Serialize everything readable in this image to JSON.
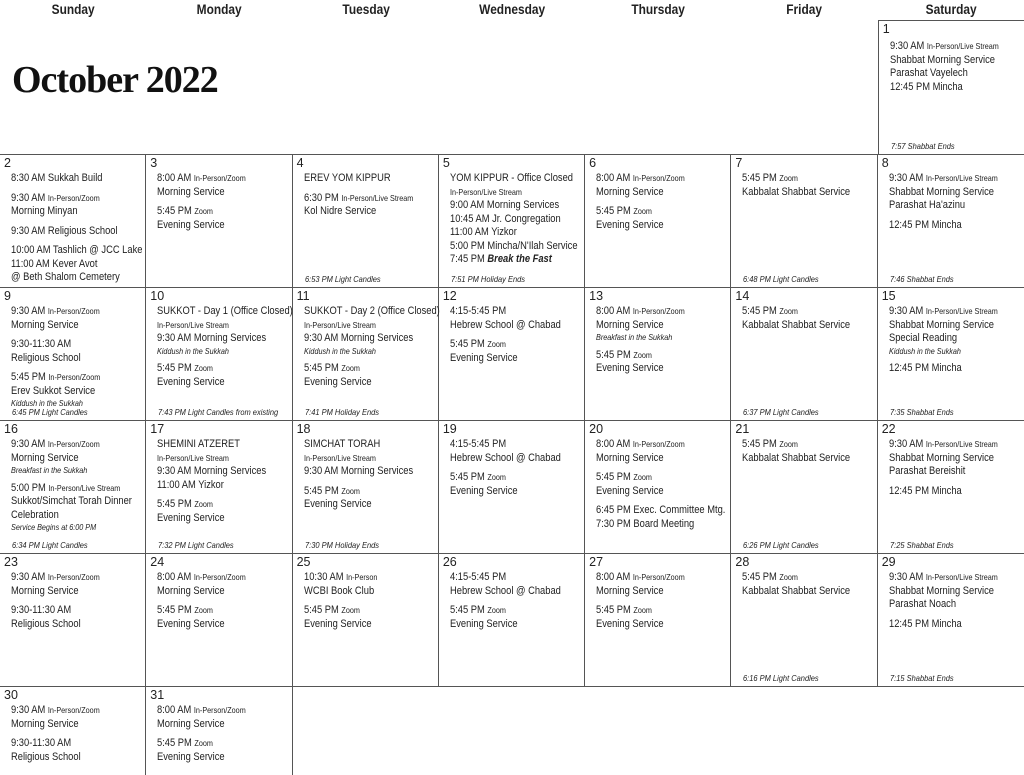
{
  "title": "October 2022",
  "weekdays": [
    "Sunday",
    "Monday",
    "Tuesday",
    "Wednesday",
    "Thursday",
    "Friday",
    "Saturday"
  ],
  "days": [
    {
      "date": 1,
      "groups": [
        [
          {
            "time": "9:30 AM",
            "mode": "In-Person/Live Stream"
          },
          "Shabbat Morning Service",
          "Parashat Vayelech",
          "12:45 PM Mincha"
        ]
      ],
      "footer": "7:57 Shabbat Ends"
    },
    {
      "date": 2,
      "groups": [
        [
          "8:30 AM Sukkah Build"
        ],
        [
          {
            "time": "9:30 AM",
            "mode": "In-Person/Zoom"
          },
          "Morning Minyan"
        ],
        [
          "9:30 AM Religious School"
        ],
        [
          "10:00 AM Tashlich @ JCC Lake",
          "11:00 AM Kever Avot",
          "@ Beth Shalom Cemetery"
        ]
      ]
    },
    {
      "date": 3,
      "groups": [
        [
          {
            "time": "8:00 AM",
            "mode": "In-Person/Zoom"
          },
          "Morning Service"
        ],
        [
          {
            "time": "5:45 PM",
            "mode": "Zoom"
          },
          "Evening Service"
        ]
      ]
    },
    {
      "date": 4,
      "groups": [
        [
          "EREV YOM KIPPUR"
        ],
        [
          {
            "time": "6:30 PM",
            "mode": "In-Person/Live Stream"
          },
          "Kol Nidre Service"
        ]
      ],
      "footer": "6:53 PM Light Candles"
    },
    {
      "date": 5,
      "groups": [
        [
          "YOM KIPPUR - Office Closed",
          {
            "mode": "In-Person/Live Stream"
          },
          "9:00 AM Morning Services",
          "10:45 AM Jr. Congregation",
          "11:00 AM Yizkor",
          "5:00 PM Mincha/N'Ilah Service",
          {
            "time": "7:45 PM",
            "emph": "Break the Fast"
          }
        ]
      ],
      "footer": "7:51 PM Holiday Ends"
    },
    {
      "date": 6,
      "groups": [
        [
          {
            "time": "8:00 AM",
            "mode": "In-Person/Zoom"
          },
          "Morning Service"
        ],
        [
          {
            "time": "5:45 PM",
            "mode": "Zoom"
          },
          "Evening Service"
        ]
      ]
    },
    {
      "date": 7,
      "groups": [
        [
          {
            "time": "5:45 PM",
            "mode": "Zoom"
          },
          "Kabbalat Shabbat Service"
        ]
      ],
      "footer": "6:48 PM Light Candles"
    },
    {
      "date": 8,
      "groups": [
        [
          {
            "time": "9:30 AM",
            "mode": "In-Person/Live Stream"
          },
          "Shabbat Morning Service",
          "Parashat Ha'azinu"
        ],
        [
          "12:45 PM Mincha"
        ]
      ],
      "footer": "7:46 Shabbat Ends"
    },
    {
      "date": 9,
      "groups": [
        [
          {
            "time": "9:30 AM",
            "mode": "In-Person/Zoom"
          },
          "Morning Service"
        ],
        [
          "9:30-11:30 AM",
          "Religious School"
        ],
        [
          {
            "time": "5:45 PM",
            "mode": "In-Person/Zoom"
          },
          "Erev Sukkot Service",
          {
            "note": "Kiddush in the Sukkah"
          }
        ]
      ],
      "footer": "6:45 PM Light Candles"
    },
    {
      "date": 10,
      "groups": [
        [
          "SUKKOT - Day 1 (Office Closed)",
          {
            "mode": "In-Person/Live Stream"
          },
          "9:30 AM Morning Services",
          {
            "note": "Kiddush in the Sukkah"
          }
        ],
        [
          {
            "time": "5:45 PM",
            "mode": "Zoom"
          },
          "Evening Service"
        ]
      ],
      "footer": "7:43 PM Light Candles from existing"
    },
    {
      "date": 11,
      "groups": [
        [
          "SUKKOT - Day 2 (Office Closed)",
          {
            "mode": "In-Person/Live Stream"
          },
          "9:30 AM Morning Services",
          {
            "note": "Kiddush in the Sukkah"
          }
        ],
        [
          {
            "time": "5:45 PM",
            "mode": "Zoom"
          },
          "Evening Service"
        ]
      ],
      "footer": "7:41 PM Holiday Ends"
    },
    {
      "date": 12,
      "groups": [
        [
          "4:15-5:45 PM",
          "Hebrew School @ Chabad"
        ],
        [
          {
            "time": "5:45 PM",
            "mode": "Zoom"
          },
          "Evening Service"
        ]
      ]
    },
    {
      "date": 13,
      "groups": [
        [
          {
            "time": "8:00 AM",
            "mode": "In-Person/Zoom"
          },
          "Morning Service",
          {
            "note": "Breakfast in the Sukkah"
          }
        ],
        [
          {
            "time": "5:45 PM",
            "mode": "Zoom"
          },
          "Evening Service"
        ]
      ]
    },
    {
      "date": 14,
      "groups": [
        [
          {
            "time": "5:45 PM",
            "mode": "Zoom"
          },
          "Kabbalat Shabbat Service"
        ]
      ],
      "footer": "6:37 PM Light Candles"
    },
    {
      "date": 15,
      "groups": [
        [
          {
            "time": "9:30 AM",
            "mode": "In-Person/Live Stream"
          },
          "Shabbat Morning Service",
          "Special Reading",
          {
            "note": "Kiddush in the Sukkah"
          }
        ],
        [
          "12:45 PM Mincha"
        ]
      ],
      "footer": "7:35 Shabbat Ends"
    },
    {
      "date": 16,
      "groups": [
        [
          {
            "time": "9:30 AM",
            "mode": "In-Person/Zoom"
          },
          "Morning Service",
          {
            "note": "Breakfast in the Sukkah"
          }
        ],
        [
          {
            "time": "5:00 PM",
            "mode": "In-Person/Live Stream"
          },
          "Sukkot/Simchat Torah Dinner",
          "Celebration",
          {
            "note": "Service Begins at 6:00 PM"
          }
        ]
      ],
      "footer": "6:34 PM Light Candles"
    },
    {
      "date": 17,
      "groups": [
        [
          "SHEMINI ATZERET",
          {
            "mode": "In-Person/Live Stream"
          },
          "9:30 AM Morning Services",
          "11:00 AM Yizkor"
        ],
        [
          {
            "time": "5:45 PM",
            "mode": "Zoom"
          },
          "Evening Service"
        ]
      ],
      "footer": "7:32 PM Light Candles"
    },
    {
      "date": 18,
      "groups": [
        [
          "SIMCHAT TORAH",
          {
            "mode": "In-Person/Live Stream"
          },
          "9:30 AM Morning Services"
        ],
        [
          {
            "time": "5:45 PM",
            "mode": "Zoom"
          },
          "Evening Service"
        ]
      ],
      "footer": "7:30 PM Holiday Ends"
    },
    {
      "date": 19,
      "groups": [
        [
          "4:15-5:45 PM",
          "Hebrew School @ Chabad"
        ],
        [
          {
            "time": "5:45 PM",
            "mode": "Zoom"
          },
          "Evening Service"
        ]
      ]
    },
    {
      "date": 20,
      "groups": [
        [
          {
            "time": "8:00 AM",
            "mode": "In-Person/Zoom"
          },
          "Morning Service"
        ],
        [
          {
            "time": "5:45 PM",
            "mode": "Zoom"
          },
          "Evening Service"
        ],
        [
          "6:45 PM Exec. Committee Mtg.",
          "7:30 PM Board Meeting"
        ]
      ]
    },
    {
      "date": 21,
      "groups": [
        [
          {
            "time": "5:45 PM",
            "mode": "Zoom"
          },
          "Kabbalat Shabbat Service"
        ]
      ],
      "footer": "6:26 PM Light Candles"
    },
    {
      "date": 22,
      "groups": [
        [
          {
            "time": "9:30 AM",
            "mode": "In-Person/Live Stream"
          },
          "Shabbat Morning Service",
          "Parashat Bereishit"
        ],
        [
          "12:45 PM Mincha"
        ]
      ],
      "footer": "7:25 Shabbat Ends"
    },
    {
      "date": 23,
      "groups": [
        [
          {
            "time": "9:30 AM",
            "mode": "In-Person/Zoom"
          },
          "Morning Service"
        ],
        [
          "9:30-11:30 AM",
          "Religious School"
        ]
      ]
    },
    {
      "date": 24,
      "groups": [
        [
          {
            "time": "8:00 AM",
            "mode": "In-Person/Zoom"
          },
          "Morning Service"
        ],
        [
          {
            "time": "5:45 PM",
            "mode": "Zoom"
          },
          "Evening Service"
        ]
      ]
    },
    {
      "date": 25,
      "groups": [
        [
          {
            "time": "10:30 AM",
            "mode": "In-Person"
          },
          "WCBI Book Club"
        ],
        [
          {
            "time": "5:45 PM",
            "mode": "Zoom"
          },
          "Evening Service"
        ]
      ]
    },
    {
      "date": 26,
      "groups": [
        [
          "4:15-5:45 PM",
          "Hebrew School @ Chabad"
        ],
        [
          {
            "time": "5:45 PM",
            "mode": "Zoom"
          },
          "Evening Service"
        ]
      ]
    },
    {
      "date": 27,
      "groups": [
        [
          {
            "time": "8:00 AM",
            "mode": "In-Person/Zoom"
          },
          "Morning Service"
        ],
        [
          {
            "time": "5:45 PM",
            "mode": "Zoom"
          },
          "Evening Service"
        ]
      ]
    },
    {
      "date": 28,
      "groups": [
        [
          {
            "time": "5:45 PM",
            "mode": "Zoom"
          },
          "Kabbalat Shabbat Service"
        ]
      ],
      "footer": "6:16 PM Light Candles"
    },
    {
      "date": 29,
      "groups": [
        [
          {
            "time": "9:30 AM",
            "mode": "In-Person/Live Stream"
          },
          "Shabbat Morning Service",
          "Parashat Noach"
        ],
        [
          "12:45 PM Mincha"
        ]
      ],
      "footer": "7:15 Shabbat Ends"
    },
    {
      "date": 30,
      "groups": [
        [
          {
            "time": "9:30 AM",
            "mode": "In-Person/Zoom"
          },
          "Morning Service"
        ],
        [
          "9:30-11:30 AM",
          "Religious School"
        ]
      ]
    },
    {
      "date": 31,
      "groups": [
        [
          {
            "time": "8:00 AM",
            "mode": "In-Person/Zoom"
          },
          "Morning Service"
        ],
        [
          {
            "time": "5:45 PM",
            "mode": "Zoom"
          },
          "Evening Service"
        ]
      ]
    }
  ]
}
